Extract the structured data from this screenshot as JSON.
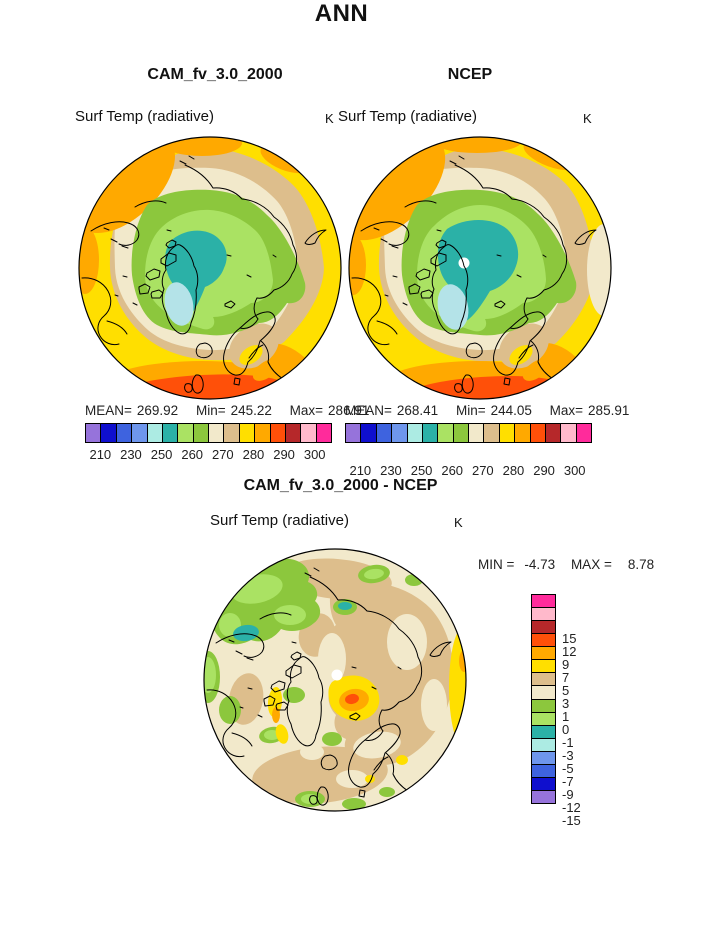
{
  "page_title": "ANN",
  "panels": {
    "cam": {
      "title": "CAM_fv_3.0_2000",
      "field_label": "Surf Temp (radiative)",
      "units": "K",
      "stats": {
        "mean_label": "MEAN=",
        "mean": "269.92",
        "min_label": "Min=",
        "min": "245.22",
        "max_label": "Max=",
        "max": "286.91"
      }
    },
    "ncep": {
      "title": "NCEP",
      "field_label": "Surf Temp (radiative)",
      "units": "K",
      "stats": {
        "mean_label": "MEAN=",
        "mean": "268.41",
        "min_label": "Min=",
        "min": "244.05",
        "max_label": "Max=",
        "max": "285.91"
      }
    },
    "diff": {
      "title": "CAM_fv_3.0_2000 - NCEP",
      "field_label": "Surf Temp (radiative)",
      "units": "K",
      "stats": {
        "min_label": "MIN =",
        "min": "-4.73",
        "max_label": "MAX =",
        "max": "8.78"
      }
    }
  },
  "temperature_colorbar": {
    "colors": [
      "#9673DB",
      "#0F0FCE",
      "#3E63DF",
      "#6E96EC",
      "#ACEBE3",
      "#2BB1A7",
      "#AAE263",
      "#8CC73D",
      "#F2E9CB",
      "#DDBE8C",
      "#FFDF00",
      "#FFA900",
      "#FF5009",
      "#B6282A",
      "#FFB9CB",
      "#FF2B9B"
    ],
    "tick_labels": [
      "210",
      "230",
      "250",
      "260",
      "270",
      "280",
      "290",
      "300"
    ],
    "tick_boundary_indices": [
      1,
      3,
      5,
      7,
      9,
      11,
      13,
      15
    ]
  },
  "difference_colorbar": {
    "colors_top_to_bottom": [
      "#FF2B9B",
      "#FFB9CB",
      "#B6282A",
      "#FF5009",
      "#FFA900",
      "#FFDF00",
      "#DDBE8C",
      "#F2E9CB",
      "#8CC73D",
      "#AAE263",
      "#2BB1A7",
      "#ACEBE3",
      "#6E96EC",
      "#3E63DF",
      "#0F0FCE",
      "#9673DB"
    ],
    "labels_top_to_bottom": [
      "15",
      "12",
      "9",
      "7",
      "5",
      "3",
      "1",
      "0",
      "-1",
      "-3",
      "-5",
      "-7",
      "-9",
      "-12",
      "-15"
    ]
  },
  "chart_data": [
    {
      "type": "heatmap",
      "subtype": "polar-stereographic-filled-contour-map",
      "season": "ANN",
      "title": "CAM_fv_3.0_2000",
      "variable": "Surf Temp (radiative)",
      "units": "K",
      "stats": {
        "mean": 269.92,
        "min": 245.22,
        "max": 286.91
      },
      "contour_boundaries": [
        210,
        220,
        230,
        240,
        250,
        255,
        260,
        265,
        270,
        275,
        280,
        285,
        290,
        295,
        300
      ],
      "labeled_ticks": [
        210,
        230,
        250,
        260,
        270,
        280,
        290,
        300
      ],
      "palette": [
        "#9673DB",
        "#0F0FCE",
        "#3E63DF",
        "#6E96EC",
        "#ACEBE3",
        "#2BB1A7",
        "#AAE263",
        "#8CC73D",
        "#F2E9CB",
        "#DDBE8C",
        "#FFDF00",
        "#FFA900",
        "#FF5009",
        "#B6282A",
        "#FFB9CB",
        "#FF2B9B"
      ],
      "legend_position": "below"
    },
    {
      "type": "heatmap",
      "subtype": "polar-stereographic-filled-contour-map",
      "season": "ANN",
      "title": "NCEP",
      "variable": "Surf Temp (radiative)",
      "units": "K",
      "stats": {
        "mean": 268.41,
        "min": 244.05,
        "max": 285.91
      },
      "contour_boundaries": [
        210,
        220,
        230,
        240,
        250,
        255,
        260,
        265,
        270,
        275,
        280,
        285,
        290,
        295,
        300
      ],
      "labeled_ticks": [
        210,
        230,
        250,
        260,
        270,
        280,
        290,
        300
      ],
      "palette": [
        "#9673DB",
        "#0F0FCE",
        "#3E63DF",
        "#6E96EC",
        "#ACEBE3",
        "#2BB1A7",
        "#AAE263",
        "#8CC73D",
        "#F2E9CB",
        "#DDBE8C",
        "#FFDF00",
        "#FFA900",
        "#FF5009",
        "#B6282A",
        "#FFB9CB",
        "#FF2B9B"
      ],
      "legend_position": "below"
    },
    {
      "type": "heatmap",
      "subtype": "polar-stereographic-filled-contour-map",
      "title": "CAM_fv_3.0_2000 - NCEP",
      "variable": "Surf Temp (radiative)",
      "units": "K",
      "stats": {
        "min": -4.73,
        "max": 8.78
      },
      "contour_boundaries": [
        -15,
        -12,
        -9,
        -7,
        -5,
        -3,
        -1,
        0,
        1,
        3,
        5,
        7,
        9,
        12,
        15
      ],
      "palette_top_to_bottom": [
        "#FF2B9B",
        "#FFB9CB",
        "#B6282A",
        "#FF5009",
        "#FFA900",
        "#FFDF00",
        "#DDBE8C",
        "#F2E9CB",
        "#8CC73D",
        "#AAE263",
        "#2BB1A7",
        "#ACEBE3",
        "#6E96EC",
        "#3E63DF",
        "#0F0FCE",
        "#9673DB"
      ],
      "legend_position": "right"
    }
  ]
}
